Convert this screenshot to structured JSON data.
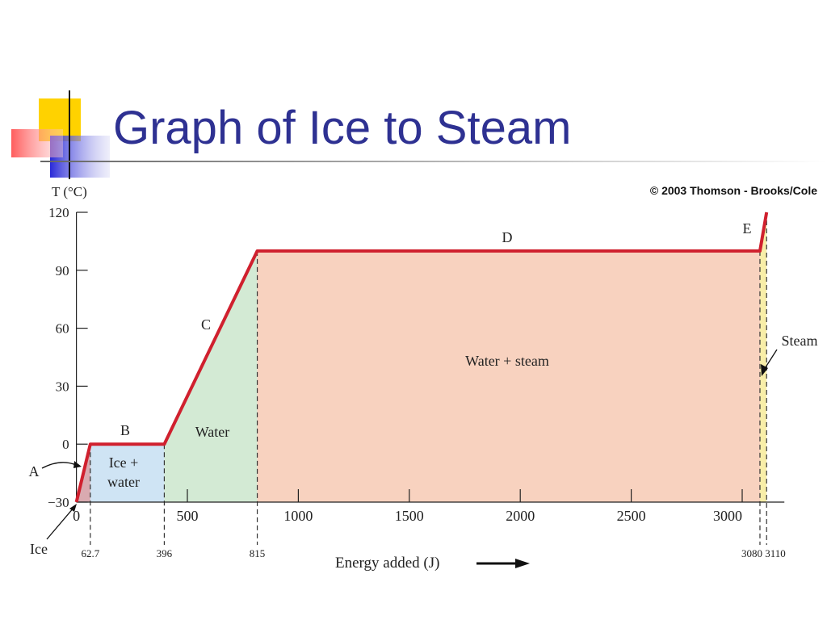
{
  "chart_data": {
    "type": "line",
    "title": "Graph of Ice to Steam",
    "source": "© 2003 Thomson - Brooks/Cole",
    "y_label": "T (°C)",
    "x_label": "Energy added (J)",
    "x": [
      0,
      62.7,
      396,
      815,
      3080,
      3110
    ],
    "series": [
      {
        "color": "#d0202e",
        "values": [
          -30,
          0,
          0,
          100,
          100,
          120
        ]
      }
    ],
    "segments": [
      {
        "letter": "A",
        "phase": [
          "Ice"
        ],
        "color": "#d9aab0"
      },
      {
        "letter": "B",
        "phase": [
          "Ice +",
          "water"
        ],
        "color": "#cfe4f4"
      },
      {
        "letter": "C",
        "phase": [
          "Water"
        ],
        "color": "#d3ead4"
      },
      {
        "letter": "D",
        "phase": [
          "Water + steam"
        ],
        "color": "#f8d2bf"
      },
      {
        "letter": "E",
        "phase": [
          "Steam"
        ],
        "color": "#f8eea8"
      }
    ],
    "xlim": [
      0,
      3190
    ],
    "ylim": [
      -30,
      120
    ],
    "xticks": [
      0,
      500,
      1000,
      1500,
      2000,
      2500,
      3000
    ],
    "yticks": [
      {
        "value": -30,
        "label": "−30"
      },
      0,
      30,
      60,
      90,
      120
    ]
  }
}
